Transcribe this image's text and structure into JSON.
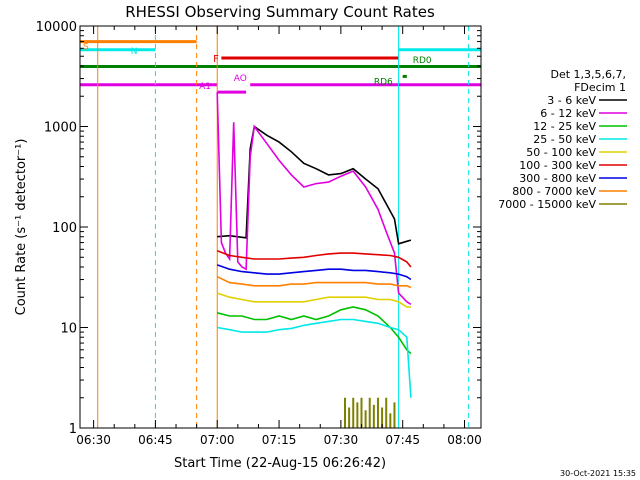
{
  "chart_data": {
    "type": "line",
    "title": "RHESSI Observing Summary Count Rates",
    "xlabel": "Start Time (22-Aug-15 06:26:42)",
    "ylabel": "Count Rate (s⁻¹ detector⁻¹)",
    "yscale": "log",
    "ylim": [
      1,
      10000
    ],
    "xlim": [
      "06:26:42",
      "08:04:00"
    ],
    "x_ticks": [
      "06:30",
      "06:45",
      "07:00",
      "07:15",
      "07:30",
      "07:45",
      "08:00"
    ],
    "y_ticks": [
      "1",
      "10",
      "100",
      "1000",
      "10000"
    ],
    "legend_header": [
      "Det 1,3,5,6,7,",
      "FDecim 1"
    ],
    "legend_position": "right",
    "timestamp": "30-Oct-2021 15:35",
    "series": [
      {
        "name": "3 - 6 keV",
        "color": "#000000",
        "points": [
          [
            "07:00",
            80
          ],
          [
            "07:03",
            82
          ],
          [
            "07:06",
            79
          ],
          [
            "07:07",
            78
          ],
          [
            "07:08",
            600
          ],
          [
            "07:09",
            1000
          ],
          [
            "07:12",
            820
          ],
          [
            "07:15",
            700
          ],
          [
            "07:18",
            560
          ],
          [
            "07:21",
            430
          ],
          [
            "07:24",
            380
          ],
          [
            "07:27",
            330
          ],
          [
            "07:30",
            340
          ],
          [
            "07:33",
            380
          ],
          [
            "07:36",
            300
          ],
          [
            "07:39",
            240
          ],
          [
            "07:41",
            170
          ],
          [
            "07:43",
            120
          ],
          [
            "07:44",
            68
          ],
          [
            "07:46",
            72
          ],
          [
            "07:47",
            74
          ]
        ]
      },
      {
        "name": "6 - 12 keV",
        "color": "#e000e0",
        "points": [
          [
            "07:00",
            2200
          ],
          [
            "07:01",
            70
          ],
          [
            "07:02",
            55
          ],
          [
            "07:03",
            48
          ],
          [
            "07:04",
            1100
          ],
          [
            "07:05",
            45
          ],
          [
            "07:06",
            40
          ],
          [
            "07:07",
            38
          ],
          [
            "07:08",
            500
          ],
          [
            "07:09",
            1000
          ],
          [
            "07:12",
            680
          ],
          [
            "07:15",
            460
          ],
          [
            "07:18",
            330
          ],
          [
            "07:21",
            250
          ],
          [
            "07:24",
            270
          ],
          [
            "07:27",
            280
          ],
          [
            "07:30",
            320
          ],
          [
            "07:33",
            360
          ],
          [
            "07:36",
            250
          ],
          [
            "07:39",
            150
          ],
          [
            "07:41",
            90
          ],
          [
            "07:43",
            55
          ],
          [
            "07:44",
            22
          ],
          [
            "07:46",
            18
          ],
          [
            "07:47",
            17
          ]
        ]
      },
      {
        "name": "12 - 25 keV",
        "color": "#00c000",
        "points": [
          [
            "07:00",
            14
          ],
          [
            "07:03",
            13
          ],
          [
            "07:06",
            13
          ],
          [
            "07:09",
            12
          ],
          [
            "07:12",
            12
          ],
          [
            "07:15",
            13
          ],
          [
            "07:18",
            12
          ],
          [
            "07:21",
            13
          ],
          [
            "07:24",
            12
          ],
          [
            "07:27",
            13
          ],
          [
            "07:30",
            15
          ],
          [
            "07:33",
            16
          ],
          [
            "07:36",
            15
          ],
          [
            "07:39",
            13
          ],
          [
            "07:42",
            10
          ],
          [
            "07:44",
            8
          ],
          [
            "07:46",
            6
          ],
          [
            "07:47",
            5.5
          ]
        ]
      },
      {
        "name": "25 - 50 keV",
        "color": "#00e8e8",
        "points": [
          [
            "07:00",
            10
          ],
          [
            "07:03",
            9.5
          ],
          [
            "07:06",
            9
          ],
          [
            "07:09",
            9
          ],
          [
            "07:12",
            9
          ],
          [
            "07:15",
            9.5
          ],
          [
            "07:18",
            9.8
          ],
          [
            "07:21",
            10.5
          ],
          [
            "07:24",
            11
          ],
          [
            "07:27",
            11.5
          ],
          [
            "07:30",
            12
          ],
          [
            "07:33",
            12
          ],
          [
            "07:36",
            11.5
          ],
          [
            "07:39",
            11
          ],
          [
            "07:42",
            10
          ],
          [
            "07:44",
            9.5
          ],
          [
            "07:46",
            8
          ],
          [
            "07:47",
            2
          ]
        ]
      },
      {
        "name": "50 - 100 keV",
        "color": "#e0d000",
        "points": [
          [
            "07:00",
            22
          ],
          [
            "07:03",
            20
          ],
          [
            "07:06",
            19
          ],
          [
            "07:09",
            18
          ],
          [
            "07:12",
            18
          ],
          [
            "07:15",
            18
          ],
          [
            "07:18",
            18
          ],
          [
            "07:21",
            18
          ],
          [
            "07:24",
            19
          ],
          [
            "07:27",
            20
          ],
          [
            "07:30",
            20
          ],
          [
            "07:33",
            20
          ],
          [
            "07:36",
            20
          ],
          [
            "07:39",
            19
          ],
          [
            "07:42",
            19
          ],
          [
            "07:44",
            18
          ],
          [
            "07:46",
            16
          ],
          [
            "07:47",
            16
          ]
        ]
      },
      {
        "name": "100 - 300 keV",
        "color": "#e00000",
        "points": [
          [
            "07:00",
            58
          ],
          [
            "07:03",
            52
          ],
          [
            "07:06",
            50
          ],
          [
            "07:09",
            48
          ],
          [
            "07:12",
            48
          ],
          [
            "07:15",
            48
          ],
          [
            "07:18",
            49
          ],
          [
            "07:21",
            50
          ],
          [
            "07:24",
            52
          ],
          [
            "07:27",
            54
          ],
          [
            "07:30",
            55
          ],
          [
            "07:33",
            55
          ],
          [
            "07:36",
            54
          ],
          [
            "07:39",
            53
          ],
          [
            "07:42",
            52
          ],
          [
            "07:44",
            50
          ],
          [
            "07:46",
            45
          ],
          [
            "07:47",
            40
          ]
        ]
      },
      {
        "name": "300 - 800 keV",
        "color": "#0000e0",
        "points": [
          [
            "07:00",
            42
          ],
          [
            "07:03",
            38
          ],
          [
            "07:06",
            36
          ],
          [
            "07:09",
            35
          ],
          [
            "07:12",
            34
          ],
          [
            "07:15",
            34
          ],
          [
            "07:18",
            35
          ],
          [
            "07:21",
            36
          ],
          [
            "07:24",
            37
          ],
          [
            "07:27",
            38
          ],
          [
            "07:30",
            38
          ],
          [
            "07:33",
            37
          ],
          [
            "07:36",
            37
          ],
          [
            "07:39",
            36
          ],
          [
            "07:42",
            35
          ],
          [
            "07:44",
            34
          ],
          [
            "07:46",
            32
          ],
          [
            "07:47",
            30
          ]
        ]
      },
      {
        "name": "800 - 7000 keV",
        "color": "#ff8000",
        "points": [
          [
            "07:00",
            32
          ],
          [
            "07:03",
            28
          ],
          [
            "07:06",
            27
          ],
          [
            "07:09",
            26
          ],
          [
            "07:12",
            26
          ],
          [
            "07:15",
            26
          ],
          [
            "07:18",
            27
          ],
          [
            "07:21",
            27
          ],
          [
            "07:24",
            28
          ],
          [
            "07:27",
            28
          ],
          [
            "07:30",
            28
          ],
          [
            "07:33",
            28
          ],
          [
            "07:36",
            28
          ],
          [
            "07:39",
            27
          ],
          [
            "07:42",
            27
          ],
          [
            "07:44",
            26
          ],
          [
            "07:46",
            26
          ],
          [
            "07:47",
            25
          ]
        ]
      },
      {
        "name": "7000 - 15000 keV",
        "color": "#808000",
        "bursts": [
          [
            "07:31",
            2.0
          ],
          [
            "07:32",
            1.6
          ],
          [
            "07:33",
            2.0
          ],
          [
            "07:34",
            1.8
          ],
          [
            "07:35",
            2.0
          ],
          [
            "07:36",
            1.5
          ],
          [
            "07:37",
            2.0
          ],
          [
            "07:38",
            1.7
          ],
          [
            "07:39",
            2.0
          ],
          [
            "07:40",
            1.6
          ],
          [
            "07:41",
            2.0
          ],
          [
            "07:42",
            1.4
          ],
          [
            "07:43",
            1.8
          ]
        ]
      }
    ],
    "state_bars": [
      {
        "label": "S",
        "color": "#ff8000",
        "start": "06:26:42",
        "end": "06:55",
        "level": 7000
      },
      {
        "label": "N",
        "color": "#00e8e8",
        "start": "06:26:42",
        "end": "06:45",
        "level": 5800
      },
      {
        "label": "",
        "color": "#00e8e8",
        "start": "07:44",
        "end": "08:04",
        "level": 5800
      },
      {
        "label": "F",
        "color": "#e00000",
        "start": "07:01",
        "end": "07:44",
        "level": 4800
      },
      {
        "label": "",
        "color": "#008000",
        "start": "06:26:42",
        "end": "08:04",
        "level": 3950
      },
      {
        "label": "",
        "color": "#e000e0",
        "start": "06:26:42",
        "end": "07:00",
        "level": 2600
      },
      {
        "label": "",
        "color": "#e000e0",
        "start": "07:08",
        "end": "08:04",
        "level": 2600
      },
      {
        "label": "A1",
        "color": "#e000e0",
        "start": "07:00",
        "end": "07:07",
        "level": 2200
      },
      {
        "label": "AO",
        "color": "#e000e0",
        "start": "",
        "end": "",
        "level": 2650
      },
      {
        "label": "RD6",
        "color": "#008000",
        "start": "07:45",
        "end": "07:46",
        "level": 3150
      },
      {
        "label": "RD0",
        "color": "#008000",
        "start": "",
        "end": "",
        "level": 4000
      }
    ],
    "vertical_markers": [
      {
        "time": "06:26:42",
        "color": "#00e8e8",
        "style": "solid"
      },
      {
        "time": "06:31",
        "color": "#ff8000",
        "style": "solid"
      },
      {
        "time": "06:45",
        "color": "#00e8e8",
        "style": "dashed"
      },
      {
        "time": "06:55",
        "color": "#ff8000",
        "style": "dashed"
      },
      {
        "time": "07:00",
        "color": "#ff8000",
        "style": "solid"
      },
      {
        "time": "07:44",
        "color": "#00e8e8",
        "style": "solid"
      },
      {
        "time": "08:01",
        "color": "#00e8e8",
        "style": "dashed"
      }
    ]
  }
}
